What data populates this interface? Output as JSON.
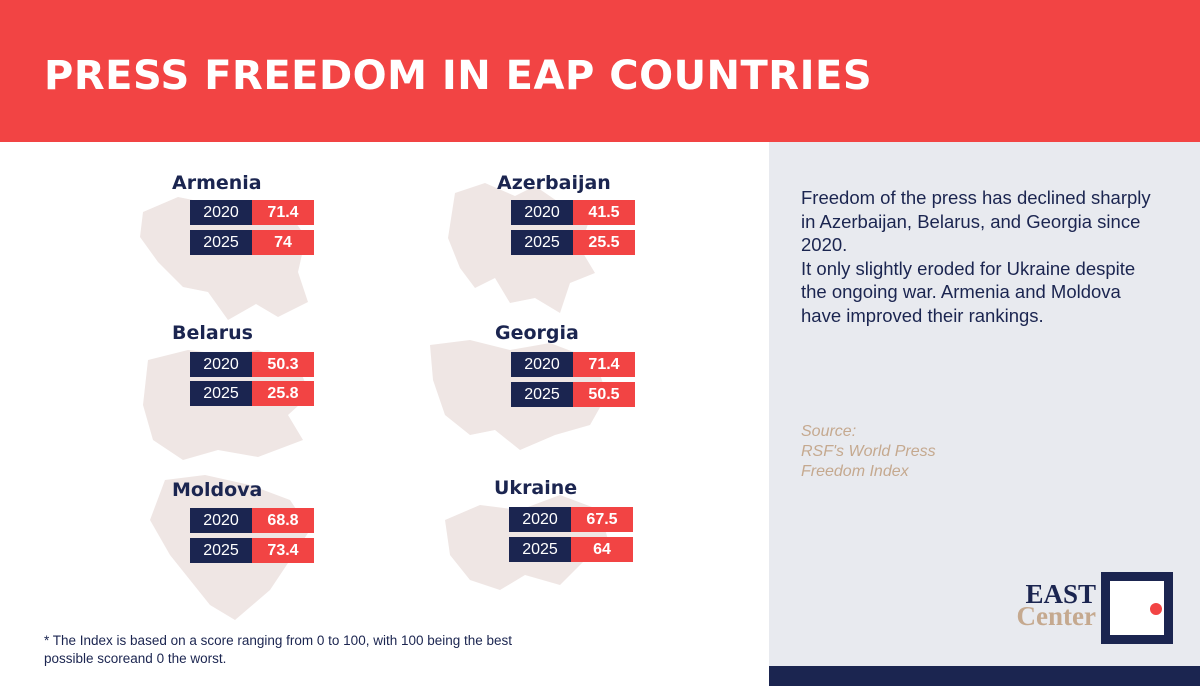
{
  "title": "PRESS FREEDOM IN EAP COUNTRIES",
  "chart_data": {
    "type": "table",
    "title": "PRESS FREEDOM IN EAP COUNTRIES",
    "columns": [
      "2020",
      "2025"
    ],
    "countries": [
      {
        "name": "Armenia",
        "rows": [
          {
            "year": "2020",
            "value": "71.4"
          },
          {
            "year": "2025",
            "value": "74"
          }
        ]
      },
      {
        "name": "Azerbaijan",
        "rows": [
          {
            "year": "2020",
            "value": "41.5"
          },
          {
            "year": "2025",
            "value": "25.5"
          }
        ]
      },
      {
        "name": "Belarus",
        "rows": [
          {
            "year": "2020",
            "value": "50.3"
          },
          {
            "year": "2025",
            "value": "25.8"
          }
        ]
      },
      {
        "name": "Georgia",
        "rows": [
          {
            "year": "2020",
            "value": "71.4"
          },
          {
            "year": "2025",
            "value": "50.5"
          }
        ]
      },
      {
        "name": "Moldova",
        "rows": [
          {
            "year": "2020",
            "value": "68.8"
          },
          {
            "year": "2025",
            "value": "73.4"
          }
        ]
      },
      {
        "name": "Ukraine",
        "rows": [
          {
            "year": "2020",
            "value": "67.5"
          },
          {
            "year": "2025",
            "value": "64"
          }
        ]
      }
    ]
  },
  "description": {
    "p1": "Freedom of the press has declined sharply in Azerbaijan, Belarus, and Georgia since 2020.",
    "p2": "It only slightly eroded for Ukraine despite the ongoing war. Armenia and Moldova have improved their rankings."
  },
  "source": {
    "label": "Source:",
    "line1": "RSF's World Press",
    "line2": "Freedom Index"
  },
  "footnote": "* The Index is based on a score ranging from 0 to 100, with 100 being the best possible scoreand 0 the worst.",
  "logo": {
    "line1": "EAST",
    "line2": "Center"
  },
  "colors": {
    "accent": "#f24444",
    "navy": "#1b2550",
    "sand": "#c5a98f",
    "panel": "#e8eaef"
  }
}
